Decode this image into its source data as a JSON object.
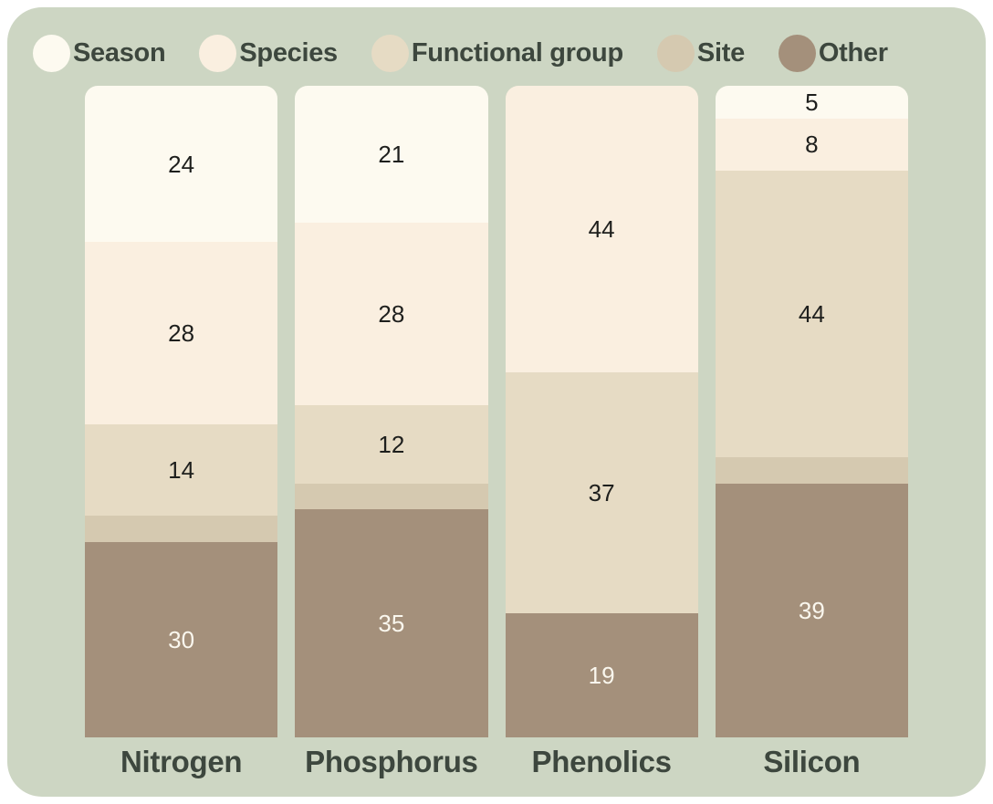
{
  "legend": {
    "items": [
      {
        "label": "Season"
      },
      {
        "label": "Species"
      },
      {
        "label": "Functional group"
      },
      {
        "label": "Site"
      },
      {
        "label": "Other"
      }
    ]
  },
  "colors": {
    "page": "#FFFFFF",
    "panel": "#CDD6C3",
    "heading_text": "#3D473E",
    "value_text_dark": "#1E1F1D",
    "value_text_light": "#FAF7EE",
    "components": {
      "Season": "#FDFAF0",
      "Species": "#FAEFE0",
      "Functional group": "#E6DBC4",
      "Site": "#D5C9B0",
      "Other": "#A4907B"
    }
  },
  "chart_data": {
    "type": "bar",
    "stacking": "percent_stacked",
    "title": "",
    "xlabel": "",
    "ylabel": "",
    "grid": false,
    "axes_shown": false,
    "legend_position": "top",
    "categories": [
      "Nitrogen",
      "Phosphorus",
      "Phenolics",
      "Silicon"
    ],
    "series": [
      {
        "name": "Season",
        "values": [
          24,
          21,
          0,
          5
        ]
      },
      {
        "name": "Species",
        "values": [
          28,
          28,
          44,
          8
        ]
      },
      {
        "name": "Functional group",
        "values": [
          14,
          12,
          37,
          44
        ]
      },
      {
        "name": "Site",
        "values": [
          4,
          4,
          0,
          4
        ]
      },
      {
        "name": "Other",
        "values": [
          30,
          35,
          19,
          39
        ]
      }
    ],
    "total_per_bar": 100,
    "value_label_min": 5
  }
}
